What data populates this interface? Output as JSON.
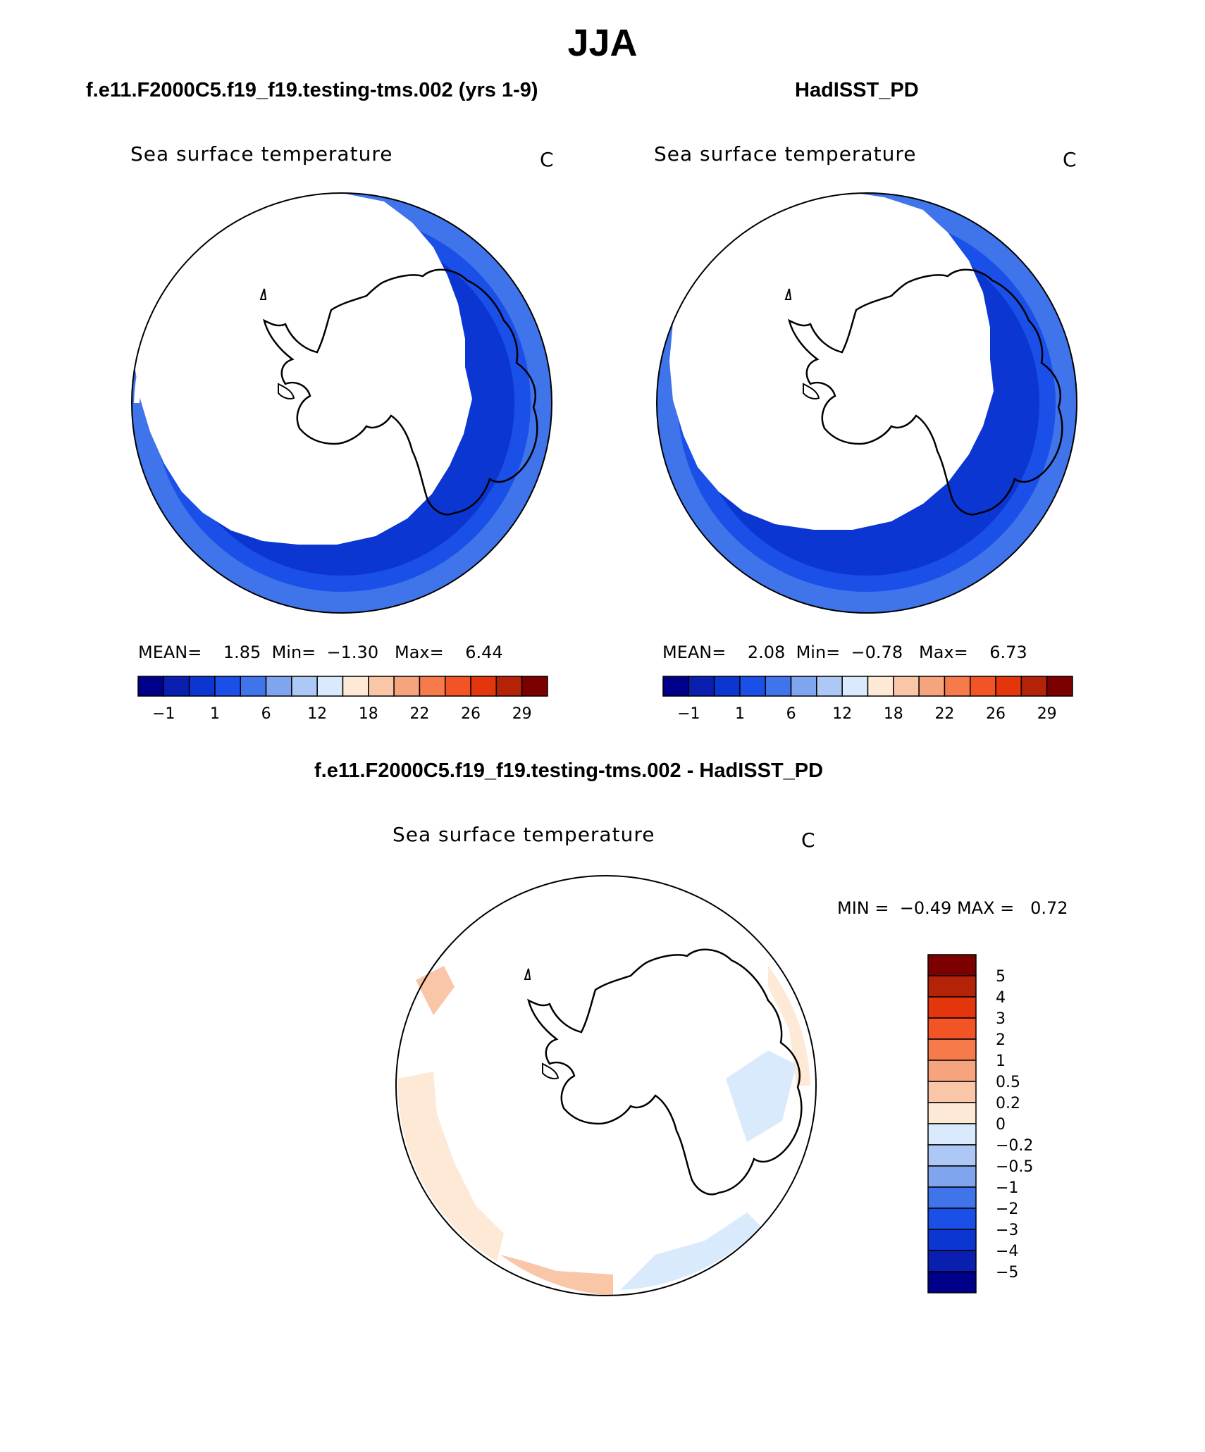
{
  "main_title": "JJA",
  "panels": [
    {
      "header": "f.e11.F2000C5.f19_f19.testing-tms.002 (yrs 1-9)",
      "plot_title": "Sea surface temperature",
      "units": "C",
      "stats": {
        "mean_label": "MEAN=",
        "mean": "1.85",
        "min_label": "Min=",
        "min": "−1.30",
        "max_label": "Max=",
        "max": "6.44"
      }
    },
    {
      "header": "HadISST_PD",
      "plot_title": "Sea surface temperature",
      "units": "C",
      "stats": {
        "mean_label": "MEAN=",
        "mean": "2.08",
        "min_label": "Min=",
        "min": "−0.78",
        "max_label": "Max=",
        "max": "6.73"
      }
    }
  ],
  "diff_panel": {
    "header": "f.e11.F2000C5.f19_f19.testing-tms.002 - HadISST_PD",
    "plot_title": "Sea surface temperature",
    "units": "C",
    "minmax": {
      "min_label": "MIN =",
      "min": "−0.49",
      "max_label": "MAX =",
      "max": "0.72"
    }
  },
  "colorbar_main": {
    "colors": [
      "#00008b",
      "#0a1fb0",
      "#0b36d2",
      "#1a4fe8",
      "#3f74ea",
      "#7fa5ef",
      "#aec8f5",
      "#d9eafc",
      "#fde9d6",
      "#f9c6a8",
      "#f6a47d",
      "#f67a4a",
      "#f25426",
      "#e4350c",
      "#b42207",
      "#7d0000"
    ],
    "tick_labels": [
      "−1",
      "1",
      "6",
      "12",
      "18",
      "22",
      "26",
      "29"
    ]
  },
  "colorbar_diff": {
    "colors": [
      "#7d0000",
      "#b42207",
      "#e4350c",
      "#f25426",
      "#f67a4a",
      "#f6a47d",
      "#f9c6a8",
      "#fde9d6",
      "#d9eafc",
      "#aec8f5",
      "#7fa5ef",
      "#3f74ea",
      "#1a4fe8",
      "#0b36d2",
      "#0a1fb0",
      "#00008b"
    ],
    "tick_labels": [
      "5",
      "4",
      "3",
      "2",
      "1",
      "0.5",
      "0.2",
      "0",
      "−0.2",
      "−0.5",
      "−1",
      "−2",
      "−3",
      "−4",
      "−5"
    ]
  },
  "map_colors": {
    "ocean_outer": "#3f74ea",
    "ocean_mid": "#1a4fe8",
    "ocean_ice_edge": "#0b36d2",
    "ice": "#ffffff",
    "diff_warm": "#fde9d6",
    "diff_warm2": "#f9c6a8",
    "diff_cool": "#d9eafc",
    "diff_cool2": "#aec8f5"
  }
}
